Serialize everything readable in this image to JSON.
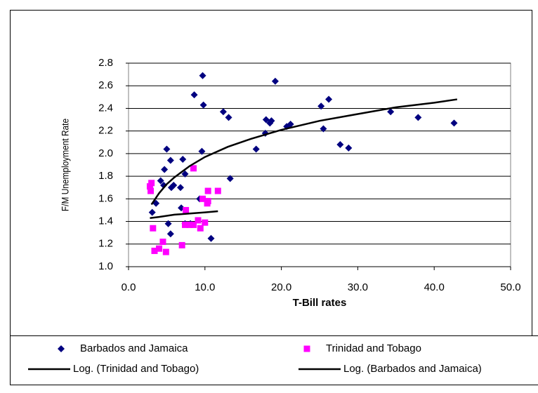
{
  "chart_data": {
    "type": "scatter",
    "x_label": "T-Bill rates",
    "y_label": "F/M Unemployment Rate",
    "xlim": [
      0,
      50
    ],
    "ylim": [
      1.0,
      2.8
    ],
    "xticks": [
      {
        "value": 0,
        "label": "0.0"
      },
      {
        "value": 10,
        "label": "10.0"
      },
      {
        "value": 20,
        "label": "20.0"
      },
      {
        "value": 30,
        "label": "30.0"
      },
      {
        "value": 40,
        "label": "40.0"
      },
      {
        "value": 50,
        "label": "50.0"
      }
    ],
    "yticks": [
      {
        "value": 1,
        "label": "1.0"
      },
      1.2,
      1.4,
      1.6,
      1.8,
      {
        "value": 2,
        "label": "2.0"
      },
      2.2,
      2.4,
      2.6,
      2.8
    ],
    "grid": true,
    "legend": "bottom",
    "series": [
      {
        "name": "Barbados and Jamaica",
        "color": "#000080",
        "marker": "diamond",
        "x": [
          3.1,
          3.6,
          4.2,
          4.6,
          4.7,
          5.0,
          5.2,
          5.5,
          5.5,
          5.6,
          5.9,
          6.8,
          6.9,
          7.1,
          7.4,
          7.4,
          8.1,
          8.6,
          9.3,
          9.6,
          9.7,
          9.8,
          10.8,
          12.4,
          13.1,
          13.3,
          16.7,
          17.9,
          18.0,
          18.5,
          18.7,
          19.2,
          20.7,
          21.2,
          25.2,
          25.5,
          26.2,
          27.7,
          28.8,
          34.3,
          37.9,
          42.6
        ],
        "values": [
          1.48,
          1.56,
          1.76,
          1.72,
          1.86,
          2.04,
          1.38,
          1.29,
          1.94,
          1.7,
          1.72,
          1.7,
          1.52,
          1.95,
          1.82,
          1.38,
          1.38,
          2.52,
          1.6,
          2.02,
          2.69,
          2.43,
          1.25,
          2.37,
          2.32,
          1.78,
          2.04,
          2.18,
          2.3,
          2.27,
          2.29,
          2.64,
          2.24,
          2.26,
          2.42,
          2.22,
          2.48,
          2.08,
          2.05,
          2.37,
          2.32,
          2.27
        ]
      },
      {
        "name": "Trinidad and Tobago",
        "color": "#ff00ff",
        "marker": "square",
        "x": [
          2.8,
          3.0,
          2.9,
          3.2,
          3.4,
          4.0,
          4.5,
          4.9,
          7.0,
          7.4,
          7.5,
          8.0,
          8.5,
          8.5,
          9.1,
          9.4,
          9.7,
          10.0,
          10.3,
          10.4,
          10.4,
          11.7
        ],
        "values": [
          1.71,
          1.74,
          1.67,
          1.34,
          1.14,
          1.16,
          1.22,
          1.13,
          1.19,
          1.37,
          1.5,
          1.37,
          1.37,
          1.87,
          1.41,
          1.34,
          1.6,
          1.39,
          1.56,
          1.67,
          1.58,
          1.67
        ]
      },
      {
        "name": "Log. (Trinidad and Tobago)",
        "color": "#000000",
        "marker": "none",
        "x": [
          2.8,
          4,
          6,
          8,
          10,
          11.7
        ],
        "values": [
          1.43,
          1.44,
          1.46,
          1.47,
          1.48,
          1.49
        ]
      },
      {
        "name": "Log. (Barbados and Jamaica)",
        "color": "#000000",
        "marker": "none",
        "x": [
          3,
          4,
          5,
          6,
          8,
          10,
          13,
          16,
          20,
          25,
          30,
          35,
          40,
          43
        ],
        "values": [
          1.55,
          1.65,
          1.73,
          1.79,
          1.89,
          1.97,
          2.06,
          2.13,
          2.21,
          2.29,
          2.35,
          2.41,
          2.45,
          2.48
        ]
      }
    ]
  }
}
